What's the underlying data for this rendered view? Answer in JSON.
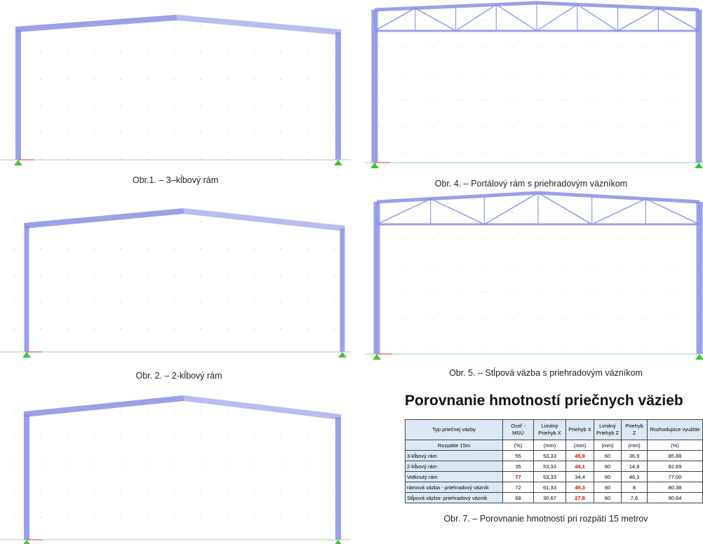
{
  "captions": {
    "fig1": "Obr.1. – 3–kĺbový rám",
    "fig4": "Obr. 4. – Portálový rám s priehradovým väzníkom",
    "fig2": "Obr. 2. – 2-kĺbový rám",
    "fig5": "Obr. 5. – Stĺpová väzba s priehradovým väzníkom",
    "fig7": "Obr. 7. – Porovnanie hmotností pri rozpätí 15 metrov"
  },
  "table": {
    "title": "Porovnanie hmotností priečnych väzieb",
    "headers": [
      "Typ priečnej väzby",
      "Oceľ - MSÚ",
      "Limitný Priehyb X",
      "Priehyb X",
      "Limitný Priehyb Z",
      "Priehyb Z",
      "Rozhodujúce využitie"
    ],
    "units": [
      "Rozpätie 15m",
      "(%)",
      "(mm)",
      "(mm)",
      "(mm)",
      "(mm)",
      "(%)"
    ],
    "rows": [
      [
        "3-kĺbový rám",
        "55",
        "53,33",
        "45,8",
        "60",
        "36,9",
        "85,88"
      ],
      [
        "2-kĺbový rám",
        "35",
        "53,33",
        "44,1",
        "60",
        "14,9",
        "82,69"
      ],
      [
        "Votknutý rám",
        "77",
        "53,33",
        "34,4",
        "60",
        "46,3",
        "77,00"
      ],
      [
        "rámová väzba - priehradový väzník",
        "72",
        "61,33",
        "49,3",
        "60",
        "8",
        "80,38"
      ],
      [
        "Stĺpová väzba- priehradový väzník",
        "68",
        "30,67",
        "27,8",
        "60",
        "7,6",
        "90,64"
      ]
    ],
    "highlighted_cells": [
      [
        0,
        3
      ],
      [
        1,
        3
      ],
      [
        2,
        1
      ],
      [
        3,
        3
      ],
      [
        4,
        3
      ]
    ],
    "highlight_color": "#e00000"
  }
}
